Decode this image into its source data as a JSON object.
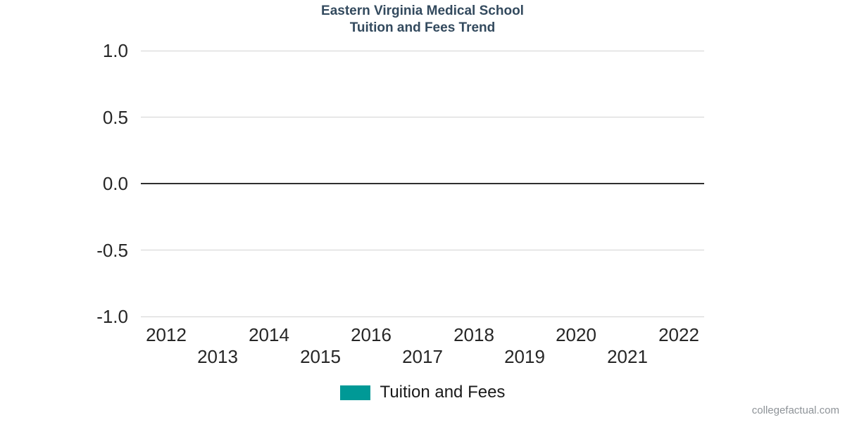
{
  "title": {
    "line1": "Eastern Virginia Medical School",
    "line2": "Tuition and Fees Trend",
    "color": "#334A5E"
  },
  "legend": {
    "items": [
      {
        "label": "Tuition and Fees",
        "color": "#009996"
      }
    ],
    "position": "bottom"
  },
  "watermark": {
    "text": "collegefactual.com",
    "color": "#8E9398"
  },
  "colors": {
    "background": "#FFFFFF",
    "gridline": "#D2D2D2",
    "zero_line": "#2F2F2F",
    "tick_label": "#262626",
    "series_teal": "#009996"
  },
  "chart_data": {
    "type": "line",
    "title": "Eastern Virginia Medical School Tuition and Fees Trend",
    "categories": [
      "2012",
      "2013",
      "2014",
      "2015",
      "2016",
      "2017",
      "2018",
      "2019",
      "2020",
      "2021",
      "2022"
    ],
    "series": [
      {
        "name": "Tuition and Fees",
        "color": "#009996",
        "values": []
      }
    ],
    "xlabel": "",
    "ylabel": "",
    "ylim": [
      -1.0,
      1.0
    ],
    "yticks": [
      {
        "value": 1.0,
        "label": "1.0"
      },
      {
        "value": 0.5,
        "label": "0.5"
      },
      {
        "value": 0.0,
        "label": "0.0"
      },
      {
        "value": -0.5,
        "label": "-0.5"
      },
      {
        "value": -1.0,
        "label": "-1.0"
      }
    ],
    "grid": true,
    "zero_line_emphasized": true,
    "x_labels_staggered": true,
    "legend_position": "bottom"
  }
}
